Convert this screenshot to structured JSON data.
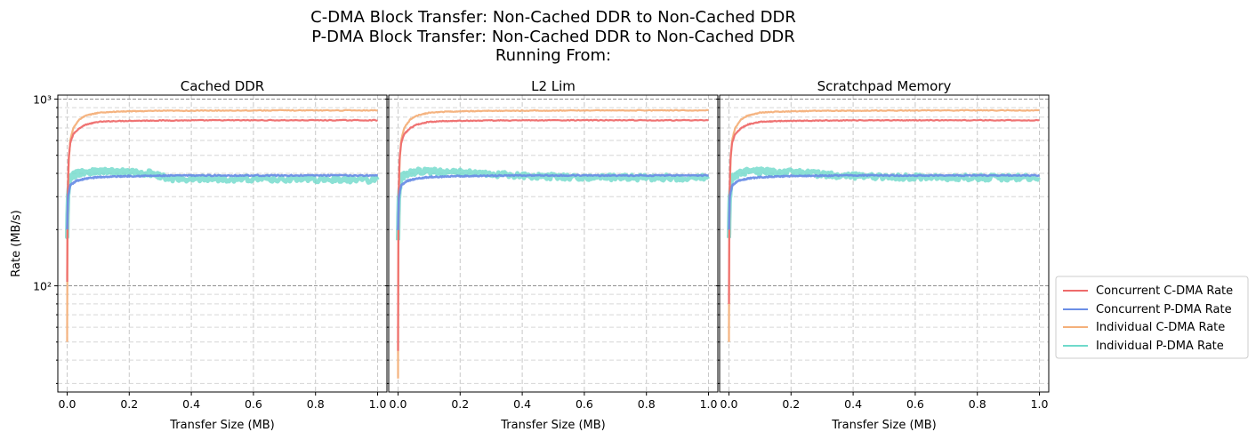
{
  "figure": {
    "title_lines": [
      "C-DMA Block Transfer: Non-Cached DDR to Non-Cached DDR",
      "P-DMA Block Transfer: Non-Cached DDR to Non-Cached DDR",
      "Running From:"
    ]
  },
  "colors": {
    "concurrent_cdma": "#ee6b6b",
    "concurrent_pdma": "#6b8ee6",
    "individual_cdma": "#f4b07a",
    "individual_pdma": "#6fdacb"
  },
  "legend": {
    "placement": "right-outside",
    "entries": [
      {
        "label": "Concurrent C-DMA Rate",
        "color_key": "concurrent_cdma"
      },
      {
        "label": "Concurrent P-DMA Rate",
        "color_key": "concurrent_pdma"
      },
      {
        "label": "Individual C-DMA Rate",
        "color_key": "individual_cdma"
      },
      {
        "label": "Individual P-DMA Rate",
        "color_key": "individual_pdma"
      }
    ]
  },
  "chart_data": [
    {
      "type": "line",
      "title": "Cached DDR",
      "xlabel": "Transfer Size (MB)",
      "ylabel": "Rate (MB/s)",
      "yscale": "log",
      "xlim": [
        -0.03,
        1.03
      ],
      "ylim": [
        27,
        1050
      ],
      "x_ticks": [
        "0.0",
        "0.2",
        "0.4",
        "0.6",
        "0.8",
        "1.0"
      ],
      "y_ticks": [
        "10²",
        "10³"
      ],
      "grid": true,
      "series": [
        {
          "name": "Concurrent C-DMA Rate",
          "color_key": "concurrent_cdma",
          "x": [
            0.0,
            0.002,
            0.005,
            0.01,
            0.02,
            0.04,
            0.06,
            0.1,
            0.15,
            0.2,
            0.3,
            0.5,
            0.7,
            1.0
          ],
          "y": [
            105,
            300,
            480,
            580,
            650,
            700,
            730,
            755,
            762,
            765,
            768,
            770,
            770,
            770
          ]
        },
        {
          "name": "Concurrent P-DMA Rate",
          "color_key": "concurrent_pdma",
          "x": [
            0.0,
            0.003,
            0.01,
            0.03,
            0.06,
            0.1,
            0.2,
            0.4,
            0.6,
            0.8,
            1.0
          ],
          "y": [
            200,
            300,
            345,
            365,
            375,
            382,
            387,
            390,
            390,
            390,
            390
          ]
        },
        {
          "name": "Individual C-DMA Rate",
          "color_key": "individual_cdma",
          "x": [
            0.0,
            0.002,
            0.005,
            0.01,
            0.02,
            0.04,
            0.06,
            0.1,
            0.15,
            0.2,
            0.3,
            0.5,
            0.7,
            1.0
          ],
          "y": [
            50,
            250,
            450,
            600,
            700,
            780,
            815,
            845,
            855,
            860,
            865,
            868,
            870,
            870
          ]
        },
        {
          "name": "Individual P-DMA Rate",
          "color_key": "individual_pdma",
          "x": [
            0.0,
            0.003,
            0.01,
            0.03,
            0.06,
            0.1,
            0.2,
            0.28,
            0.32,
            0.4,
            0.6,
            0.8,
            1.0
          ],
          "y": [
            180,
            300,
            380,
            400,
            410,
            410,
            405,
            400,
            375,
            375,
            375,
            372,
            370
          ]
        }
      ]
    },
    {
      "type": "line",
      "title": "L2 Lim",
      "xlabel": "Transfer Size (MB)",
      "ylabel": "",
      "yscale": "log",
      "xlim": [
        -0.03,
        1.03
      ],
      "ylim": [
        27,
        1050
      ],
      "x_ticks": [
        "0.0",
        "0.2",
        "0.4",
        "0.6",
        "0.8",
        "1.0"
      ],
      "y_ticks": [],
      "grid": true,
      "series": [
        {
          "name": "Concurrent C-DMA Rate",
          "color_key": "concurrent_cdma",
          "x": [
            0.0,
            0.002,
            0.005,
            0.01,
            0.02,
            0.04,
            0.06,
            0.1,
            0.15,
            0.2,
            0.3,
            0.5,
            0.7,
            1.0
          ],
          "y": [
            45,
            300,
            480,
            580,
            650,
            700,
            730,
            755,
            762,
            765,
            768,
            770,
            770,
            770
          ]
        },
        {
          "name": "Concurrent P-DMA Rate",
          "color_key": "concurrent_pdma",
          "x": [
            0.0,
            0.003,
            0.01,
            0.03,
            0.06,
            0.1,
            0.2,
            0.4,
            0.6,
            0.8,
            1.0
          ],
          "y": [
            200,
            300,
            345,
            365,
            375,
            382,
            387,
            390,
            390,
            390,
            390
          ]
        },
        {
          "name": "Individual C-DMA Rate",
          "color_key": "individual_cdma",
          "x": [
            0.0,
            0.002,
            0.005,
            0.01,
            0.02,
            0.04,
            0.06,
            0.1,
            0.15,
            0.2,
            0.3,
            0.5,
            0.7,
            1.0
          ],
          "y": [
            32,
            250,
            450,
            600,
            700,
            780,
            815,
            845,
            855,
            860,
            865,
            868,
            870,
            870
          ]
        },
        {
          "name": "Individual P-DMA Rate",
          "color_key": "individual_pdma",
          "x": [
            0.0,
            0.003,
            0.01,
            0.03,
            0.06,
            0.1,
            0.2,
            0.3,
            0.4,
            0.6,
            0.8,
            1.0
          ],
          "y": [
            180,
            300,
            380,
            400,
            410,
            410,
            405,
            395,
            388,
            382,
            380,
            380
          ]
        }
      ]
    },
    {
      "type": "line",
      "title": "Scratchpad Memory",
      "xlabel": "Transfer Size (MB)",
      "ylabel": "",
      "yscale": "log",
      "xlim": [
        -0.03,
        1.03
      ],
      "ylim": [
        27,
        1050
      ],
      "x_ticks": [
        "0.0",
        "0.2",
        "0.4",
        "0.6",
        "0.8",
        "1.0"
      ],
      "y_ticks": [],
      "grid": true,
      "series": [
        {
          "name": "Concurrent C-DMA Rate",
          "color_key": "concurrent_cdma",
          "x": [
            0.0,
            0.002,
            0.005,
            0.01,
            0.02,
            0.04,
            0.06,
            0.1,
            0.15,
            0.2,
            0.3,
            0.5,
            0.7,
            1.0
          ],
          "y": [
            80,
            300,
            480,
            580,
            650,
            700,
            730,
            755,
            762,
            765,
            768,
            770,
            770,
            770
          ]
        },
        {
          "name": "Concurrent P-DMA Rate",
          "color_key": "concurrent_pdma",
          "x": [
            0.0,
            0.003,
            0.01,
            0.03,
            0.06,
            0.1,
            0.2,
            0.4,
            0.6,
            0.8,
            1.0
          ],
          "y": [
            200,
            300,
            345,
            365,
            375,
            382,
            387,
            390,
            390,
            390,
            390
          ]
        },
        {
          "name": "Individual C-DMA Rate",
          "color_key": "individual_cdma",
          "x": [
            0.0,
            0.002,
            0.005,
            0.01,
            0.02,
            0.04,
            0.06,
            0.1,
            0.15,
            0.2,
            0.3,
            0.5,
            0.7,
            1.0
          ],
          "y": [
            50,
            250,
            450,
            600,
            700,
            780,
            815,
            845,
            855,
            860,
            865,
            868,
            870,
            870
          ]
        },
        {
          "name": "Individual P-DMA Rate",
          "color_key": "individual_pdma",
          "x": [
            0.0,
            0.003,
            0.01,
            0.03,
            0.06,
            0.1,
            0.2,
            0.3,
            0.4,
            0.6,
            0.8,
            1.0
          ],
          "y": [
            180,
            300,
            380,
            400,
            410,
            410,
            405,
            395,
            388,
            382,
            380,
            380
          ]
        }
      ]
    }
  ]
}
